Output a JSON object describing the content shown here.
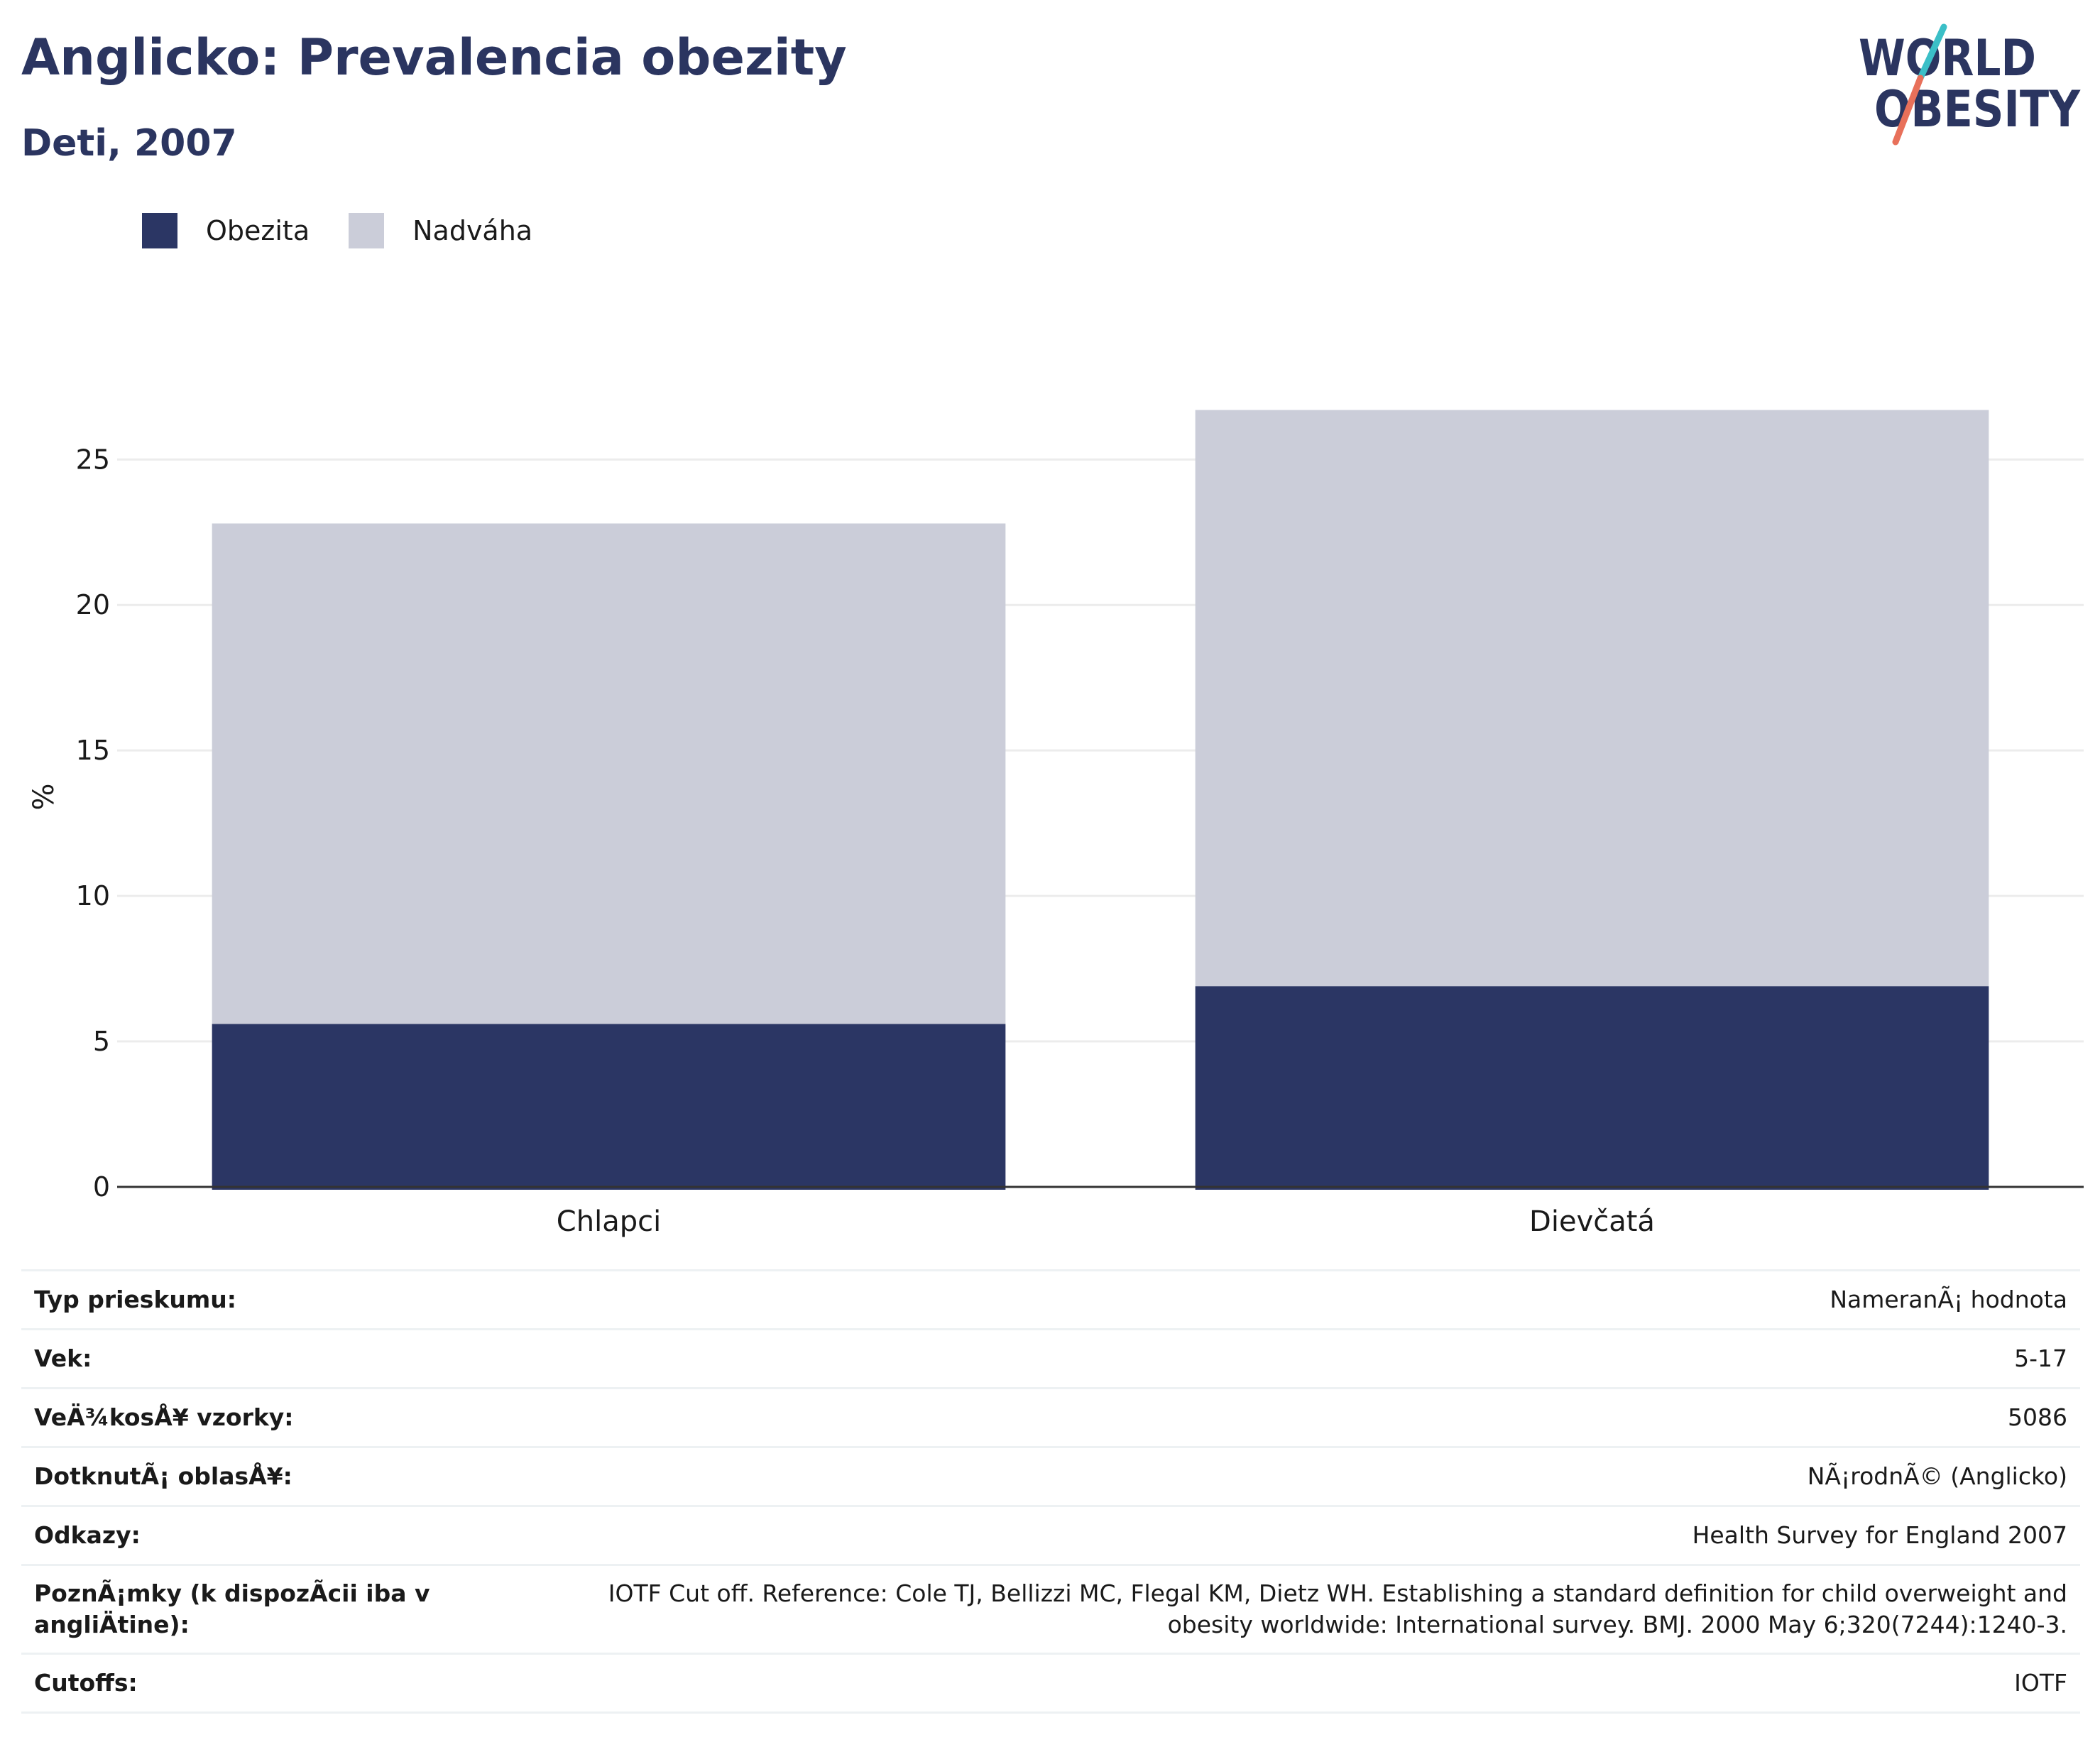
{
  "header": {
    "title": "Anglicko: Prevalencia obezity",
    "subtitle": "Deti, 2007"
  },
  "logo": {
    "line1": "WORLD",
    "line2": "OBESITY",
    "colors": {
      "text": "#2b3560",
      "slash_top": "#3bbfc7",
      "slash_bottom": "#e8705a"
    }
  },
  "colors": {
    "obesity": "#2b3664",
    "overweight": "#cbcdd9",
    "grid": "#ececec",
    "axis": "#333333"
  },
  "chart_data": {
    "type": "bar",
    "stacked": true,
    "categories": [
      "Chlapci",
      "Dievčatá"
    ],
    "series": [
      {
        "name": "Obezita",
        "values": [
          5.6,
          6.9
        ]
      },
      {
        "name": "Nadváha",
        "values": [
          17.2,
          19.8
        ]
      }
    ],
    "ylabel": "%",
    "ylim": [
      0,
      27.3
    ],
    "yticks": [
      "0",
      "5",
      "10",
      "15",
      "20",
      "25"
    ],
    "ytick_values": [
      0,
      5,
      10,
      15,
      20,
      25
    ],
    "grid": true,
    "legend_position": "top-left"
  },
  "info": [
    {
      "label": "Typ prieskumu:",
      "value": "NameranÃ¡ hodnota"
    },
    {
      "label": "Vek:",
      "value": "5-17"
    },
    {
      "label": "VeÄ¾kosÅ¥ vzorky:",
      "value": "5086"
    },
    {
      "label": "DotknutÃ¡ oblasÅ¥:",
      "value": "NÃ¡rodnÃ© (Anglicko)"
    },
    {
      "label": "Odkazy:",
      "value": "Health Survey for England 2007"
    },
    {
      "label": "PoznÃ¡mky (k dispozÃcii iba v angliÄ\btine):",
      "value": "IOTF Cut off. Reference: Cole TJ, Bellizzi MC, Flegal KM, Dietz WH. Establishing a standard definition for child overweight and obesity worldwide: International survey. BMJ. 2000 May 6;320(7244):1240-3."
    },
    {
      "label": "Cutoffs:",
      "value": "IOTF"
    }
  ]
}
